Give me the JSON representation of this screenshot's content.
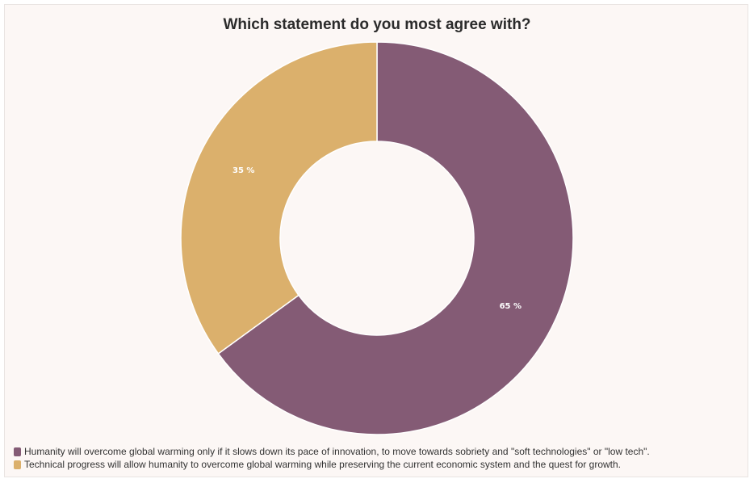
{
  "chart_data": {
    "type": "pie",
    "variant": "donut",
    "title": "Which statement do you most agree with?",
    "series": [
      {
        "name": "Humanity will overcome global warming only if it slows down its pace of innovation, to move towards sobriety and \"soft technologies\" or \"low tech\".",
        "value": 65,
        "label": "65 %",
        "color": "#845b75"
      },
      {
        "name": "Technical progress will allow humanity to overcome global warming while preserving the current economic system and the quest for growth.",
        "value": 35,
        "label": "35 %",
        "color": "#dbb06c"
      }
    ],
    "legend_position": "bottom-left"
  }
}
